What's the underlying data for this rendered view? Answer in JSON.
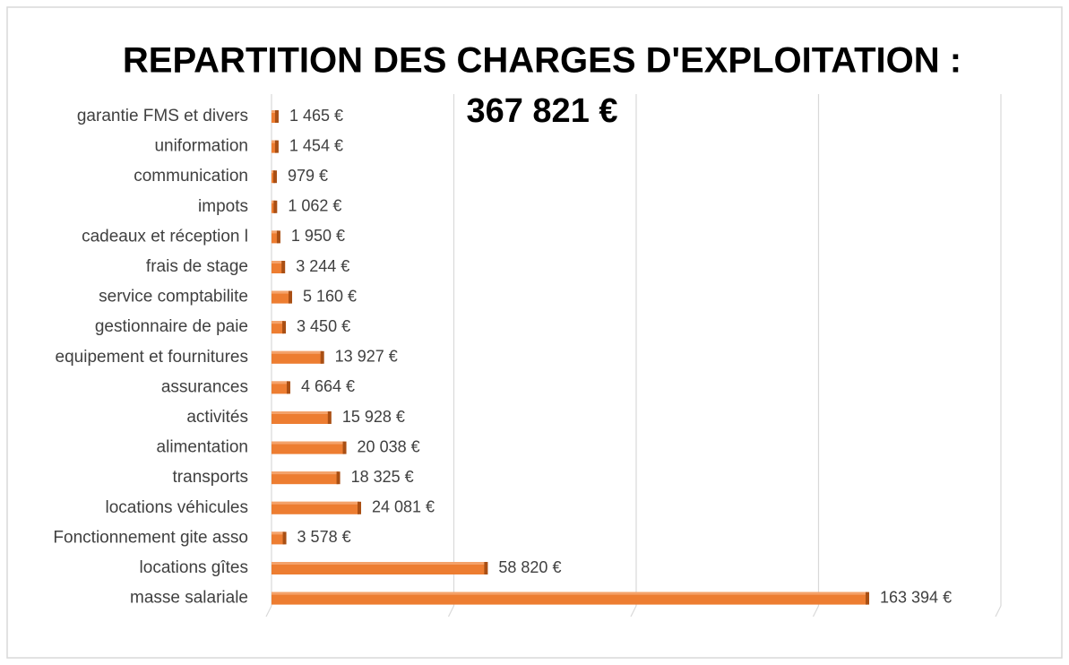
{
  "chart_data": {
    "type": "barh",
    "title": "REPARTITION  DES  CHARGES D'EXPLOITATION :",
    "subtitle": "367 821 €",
    "categories": [
      "garantie FMS et divers",
      "uniformation",
      "communication",
      "impots",
      "cadeaux et réception l",
      "frais de stage",
      "service comptabilite",
      "gestionnaire de paie",
      "equipement et fournitures",
      "assurances",
      "activités",
      "alimentation",
      "transports",
      "locations véhicules",
      "Fonctionnement gite asso",
      "locations gîtes",
      "masse salariale"
    ],
    "values": [
      1465,
      1454,
      979,
      1062,
      1950,
      3244,
      5160,
      3450,
      13927,
      4664,
      15928,
      20038,
      18325,
      24081,
      3578,
      58820,
      163394
    ],
    "value_labels": [
      "1 465 €",
      "1 454 €",
      "979 €",
      "1 062 €",
      "1 950 €",
      "3 244 €",
      "5 160 €",
      "3 450 €",
      "13 927 €",
      "4 664 €",
      "15 928 €",
      "20 038 €",
      "18 325 €",
      "24 081 €",
      "3 578 €",
      "58 820 €",
      "163 394 €"
    ],
    "color": "#ed7d31",
    "xlim": [
      0,
      200000
    ],
    "xticks": [
      0,
      50000,
      100000,
      150000,
      200000
    ],
    "grid": true
  }
}
